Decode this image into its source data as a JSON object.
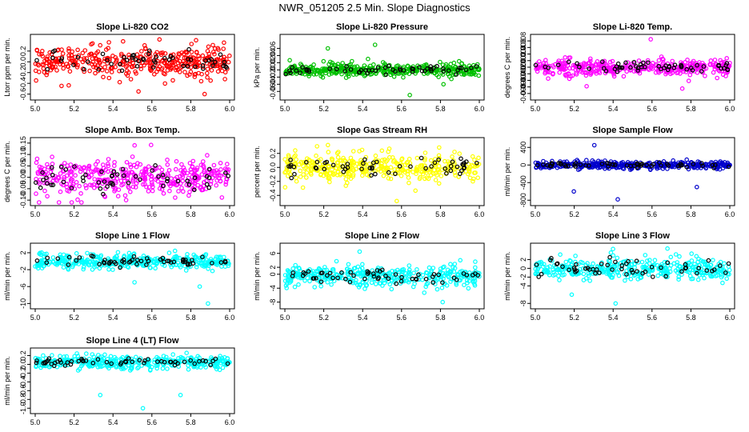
{
  "title": "NWR_051205  2.5 Min. Slope Diagnostics",
  "x_tick_labels": [
    "5.0",
    "5.2",
    "5.4",
    "5.6",
    "5.8",
    "6.0"
  ],
  "chart_data": [
    {
      "type": "scatter",
      "title": "Slope Li-820 CO2",
      "ylabel": "Ltorr ppm per min.",
      "xlim": [
        5.0,
        6.0
      ],
      "ylim": [
        -0.65,
        0.45
      ],
      "yticks": [
        -0.6,
        -0.4,
        -0.2,
        0.0,
        0.2
      ],
      "ytick_labels": [
        "-0.6",
        "-0.4",
        "-0.2",
        "0.0",
        "0.2"
      ],
      "color": "#ff0000",
      "center": 0.0,
      "spread": 0.14,
      "outliers": [
        0.38,
        -0.6,
        -0.55
      ],
      "highlight_color": "#000000"
    },
    {
      "type": "scatter",
      "title": "Slope Li-820 Pressure",
      "ylabel": "kPa per min.",
      "xlim": [
        5.0,
        6.0
      ],
      "ylim": [
        -0.075,
        0.09
      ],
      "yticks": [
        -0.06,
        -0.04,
        -0.02,
        0.0,
        0.02,
        0.04,
        0.06
      ],
      "ytick_labels": [
        "-0.06",
        "-0.04",
        "-0.02",
        "0.00",
        "0.02",
        "0.04",
        "0.06"
      ],
      "color": "#00c000",
      "center": 0.0,
      "spread": 0.009,
      "outliers": [
        0.07,
        -0.07,
        0.06,
        -0.04
      ],
      "highlight_color": "#000000"
    },
    {
      "type": "scatter",
      "title": "Slope Li-820 Temp.",
      "ylabel": "degrees C per min.",
      "xlim": [
        5.0,
        6.0
      ],
      "ylim": [
        -0.009,
        0.009
      ],
      "yticks": [
        -0.008,
        -0.006,
        -0.004,
        -0.002,
        0.0,
        0.002,
        0.004,
        0.006,
        0.008
      ],
      "ytick_labels": [
        "-0.008",
        "-0.006",
        "-0.004",
        "-0.002",
        "0.000",
        "0.002",
        "0.004",
        "0.006",
        "0.008"
      ],
      "color": "#ff00ff",
      "center": 0.0,
      "spread": 0.0012,
      "outliers": [
        0.0085,
        -0.0065,
        -0.0058
      ],
      "highlight_color": "#000000"
    },
    {
      "type": "scatter",
      "title": "Slope Amb. Box Temp.",
      "ylabel": "degrees C per min.",
      "xlim": [
        5.0,
        6.0
      ],
      "ylim": [
        -0.11,
        0.16
      ],
      "yticks": [
        -0.1,
        -0.05,
        0.0,
        0.05,
        0.1,
        0.15
      ],
      "ytick_labels": [
        "-0.10",
        "-0.05",
        "0.00",
        "0.05",
        "0.10",
        "0.15"
      ],
      "color": "#ff00ff",
      "center": 0.0,
      "spread": 0.04,
      "outliers": [
        0.14,
        -0.1
      ],
      "highlight_color": "#000000"
    },
    {
      "type": "scatter",
      "title": "Slope Gas Stream RH",
      "ylabel": "percent per min.",
      "xlim": [
        5.0,
        6.0
      ],
      "ylim": [
        -0.5,
        0.38
      ],
      "yticks": [
        -0.4,
        -0.2,
        0.0,
        0.2
      ],
      "ytick_labels": [
        "-0.4",
        "-0.2",
        "0.0",
        "0.2"
      ],
      "color": "#ffff00",
      "center": 0.0,
      "spread": 0.1,
      "outliers": [
        0.32,
        -0.48
      ],
      "highlight_color": "#000000"
    },
    {
      "type": "scatter",
      "title": "Slope Sample Flow",
      "ylabel": "ml/min per min.",
      "xlim": [
        5.0,
        6.0
      ],
      "ylim": [
        -850,
        550
      ],
      "yticks": [
        -800,
        -400,
        0,
        400
      ],
      "ytick_labels": [
        "-800",
        "-400",
        "0",
        "400"
      ],
      "color": "#0000cc",
      "center": 0,
      "spread": 40,
      "outliers": [
        450,
        -780,
        -600,
        -500
      ],
      "highlight_color": "#000000"
    },
    {
      "type": "scatter",
      "title": "Slope Line 1 Flow",
      "ylabel": "ml/min per min.",
      "xlim": [
        5.0,
        6.0
      ],
      "ylim": [
        -10.5,
        3.5
      ],
      "yticks": [
        -10,
        -6,
        -2,
        2
      ],
      "ytick_labels": [
        "-10",
        "-6",
        "-2",
        "2"
      ],
      "color": "#00ffff",
      "center": 0,
      "spread": 0.9,
      "outliers": [
        -10,
        -6,
        -5
      ],
      "highlight_color": "#000000"
    },
    {
      "type": "scatter",
      "title": "Slope Line 2 Flow",
      "ylabel": "ml/min per min.",
      "xlim": [
        5.0,
        6.0
      ],
      "ylim": [
        -9,
        8
      ],
      "yticks": [
        -8,
        -4,
        0,
        2,
        6
      ],
      "ytick_labels": [
        "-8",
        "-4",
        "0",
        "2",
        "6"
      ],
      "color": "#00ffff",
      "center": -0.5,
      "spread": 1.4,
      "outliers": [
        6.5,
        -8
      ],
      "highlight_color": "#000000"
    },
    {
      "type": "scatter",
      "title": "Slope Line 3 Flow",
      "ylabel": "ml/min per min.",
      "xlim": [
        5.0,
        6.0
      ],
      "ylim": [
        -8.5,
        5
      ],
      "yticks": [
        -8,
        -4,
        -2,
        0,
        2
      ],
      "ytick_labels": [
        "-8",
        "-4",
        "-2",
        "0",
        "2"
      ],
      "color": "#00ffff",
      "center": 0,
      "spread": 1.3,
      "outliers": [
        4.5,
        -8,
        -6
      ],
      "highlight_color": "#000000"
    },
    {
      "type": "scatter",
      "title": "Slope Line 4 (LT) Flow",
      "ylabel": "ml/min per min.",
      "xlim": [
        5.0,
        6.0
      ],
      "ylim": [
        -1.05,
        0.3
      ],
      "yticks": [
        -1.0,
        -0.8,
        -0.6,
        -0.4,
        -0.2,
        0.0,
        0.2
      ],
      "ytick_labels": [
        "-1.0",
        "-0.8",
        "-0.6",
        "-0.4",
        "-0.2",
        "0.0",
        "0.2"
      ],
      "color": "#00ffff",
      "center": 0.05,
      "spread": 0.07,
      "outliers": [
        -1.0,
        -0.7,
        -0.7
      ],
      "highlight_color": "#000000"
    }
  ]
}
